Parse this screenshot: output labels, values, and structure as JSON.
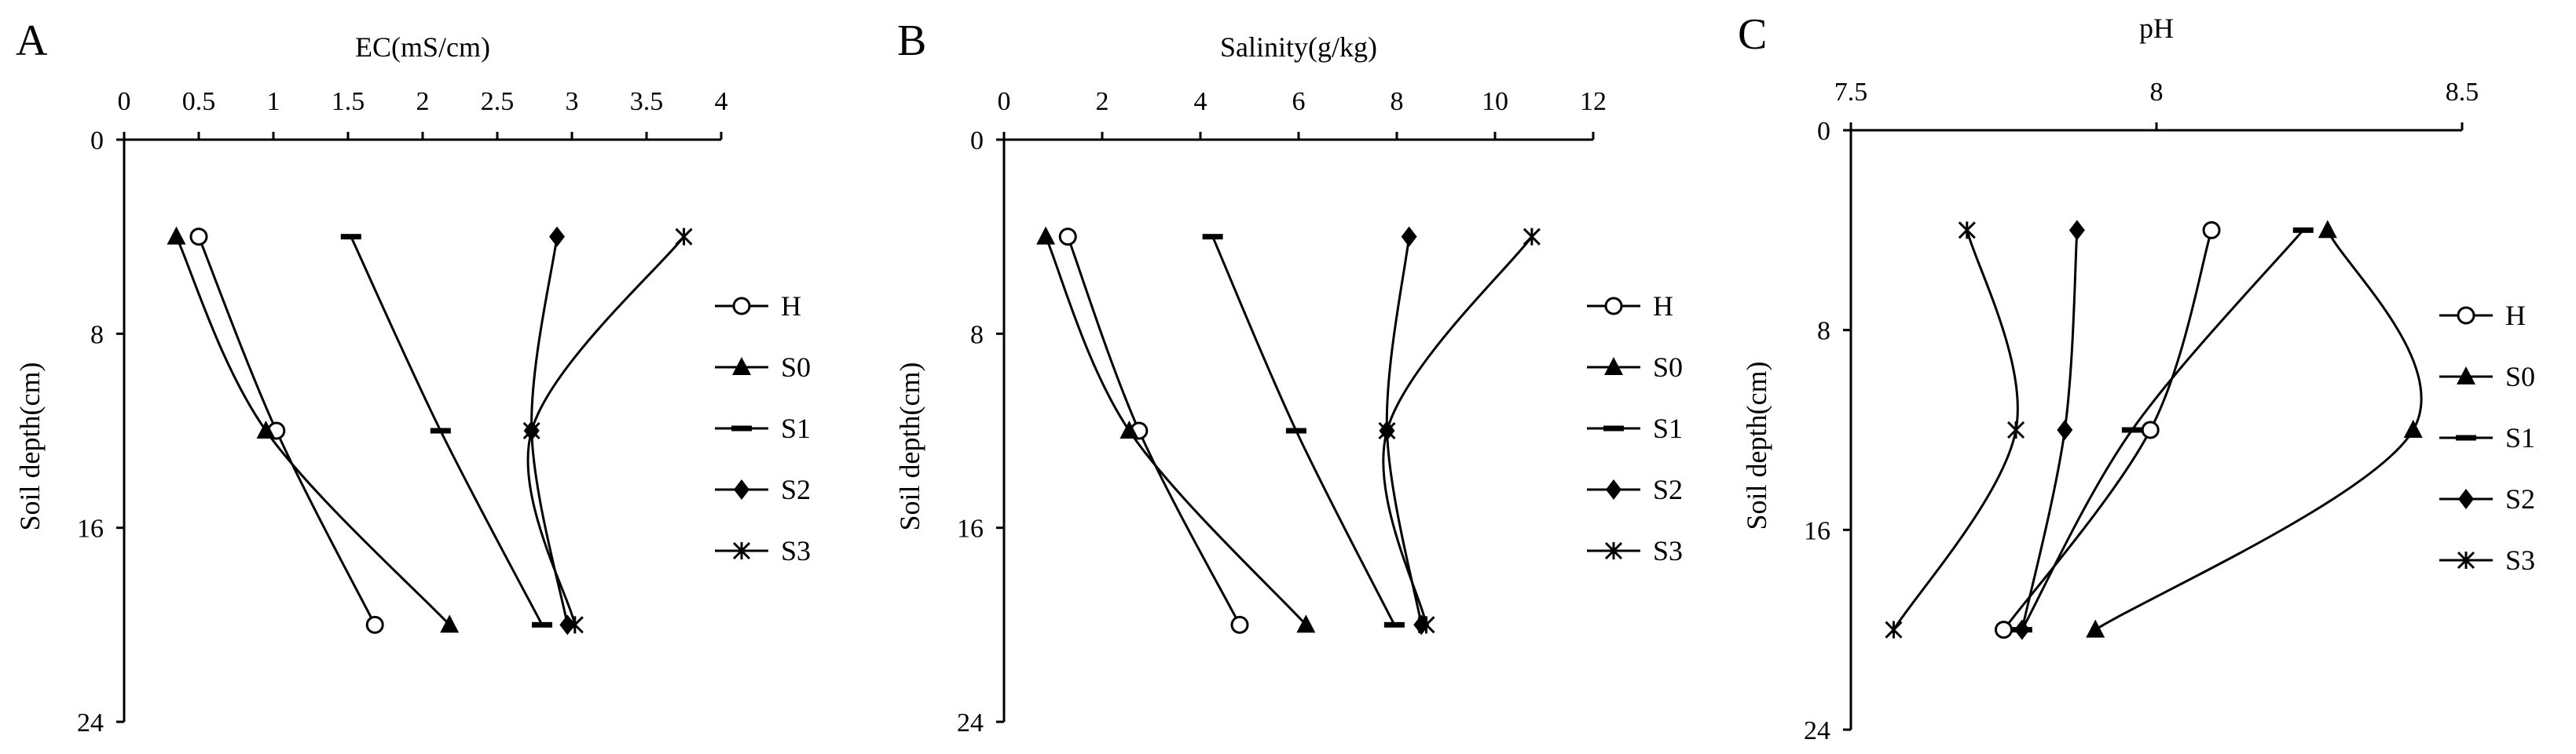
{
  "chart_data": [
    {
      "type": "line",
      "panel": "A",
      "title": "",
      "xlabel": "EC(mS/cm)",
      "ylabel": "Soil depth(cm)",
      "xlim": [
        0,
        4
      ],
      "ylim": [
        0,
        24
      ],
      "x_ticks": [
        "0",
        "0.5",
        "1",
        "1.5",
        "2",
        "2.5",
        "3",
        "3.5",
        "4"
      ],
      "y_ticks": [
        "0",
        "8",
        "16",
        "24"
      ],
      "depth": [
        4,
        12,
        20
      ],
      "series": [
        {
          "name": "H",
          "marker": "circle",
          "values": [
            0.5,
            1.02,
            1.68
          ]
        },
        {
          "name": "S0",
          "marker": "triangle",
          "values": [
            0.35,
            0.95,
            2.18
          ]
        },
        {
          "name": "S1",
          "marker": "dash",
          "values": [
            1.52,
            2.12,
            2.8
          ]
        },
        {
          "name": "S2",
          "marker": "diamond",
          "values": [
            2.9,
            2.73,
            2.97
          ]
        },
        {
          "name": "S3",
          "marker": "star",
          "values": [
            3.75,
            2.73,
            3.02
          ]
        }
      ],
      "legend_position": "right"
    },
    {
      "type": "line",
      "panel": "B",
      "title": "",
      "xlabel": "Salinity(g/kg)",
      "ylabel": "Soil depth(cm)",
      "xlim": [
        0,
        12
      ],
      "ylim": [
        0,
        24
      ],
      "x_ticks": [
        "0",
        "2",
        "4",
        "6",
        "8",
        "10",
        "12"
      ],
      "y_ticks": [
        "0",
        "8",
        "16",
        "24"
      ],
      "depth": [
        4,
        12,
        20
      ],
      "series": [
        {
          "name": "H",
          "marker": "circle",
          "values": [
            1.3,
            2.75,
            4.8
          ]
        },
        {
          "name": "S0",
          "marker": "triangle",
          "values": [
            0.85,
            2.55,
            6.15
          ]
        },
        {
          "name": "S1",
          "marker": "dash",
          "values": [
            4.25,
            5.95,
            7.95
          ]
        },
        {
          "name": "S2",
          "marker": "diamond",
          "values": [
            8.25,
            7.8,
            8.5
          ]
        },
        {
          "name": "S3",
          "marker": "star",
          "values": [
            10.75,
            7.8,
            8.6
          ]
        }
      ],
      "legend_position": "right"
    },
    {
      "type": "line",
      "panel": "C",
      "title": "",
      "xlabel": "pH",
      "ylabel": "Soil depth(cm)",
      "xlim": [
        7.5,
        8.5
      ],
      "ylim": [
        0,
        24
      ],
      "x_ticks": [
        "7.5",
        "8",
        "8.5"
      ],
      "y_ticks": [
        "0",
        "8",
        "16",
        "24"
      ],
      "depth": [
        4,
        12,
        20
      ],
      "series": [
        {
          "name": "H",
          "marker": "circle",
          "values": [
            8.09,
            7.99,
            7.75
          ]
        },
        {
          "name": "S0",
          "marker": "triangle",
          "values": [
            8.28,
            8.42,
            7.9
          ]
        },
        {
          "name": "S1",
          "marker": "dash",
          "values": [
            8.24,
            7.96,
            7.78
          ]
        },
        {
          "name": "S2",
          "marker": "diamond",
          "values": [
            7.87,
            7.85,
            7.78
          ]
        },
        {
          "name": "S3",
          "marker": "star",
          "values": [
            7.69,
            7.77,
            7.57
          ]
        }
      ],
      "legend_position": "right"
    }
  ]
}
